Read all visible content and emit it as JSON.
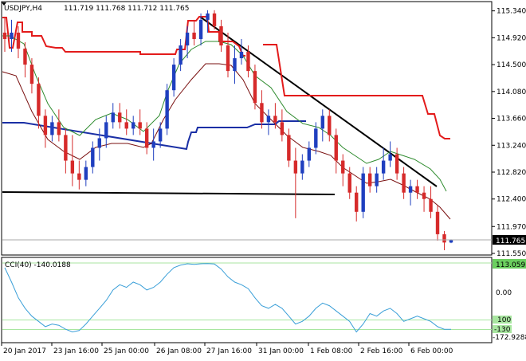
{
  "header": {
    "symbol": "USDJPY,H4",
    "ohlc": "111.719 111.768 111.712 111.765"
  },
  "price_axis": {
    "labels": [
      "115.340",
      "114.920",
      "114.500",
      "114.080",
      "113.660",
      "113.240",
      "112.820",
      "112.400",
      "111.970",
      "111.550"
    ],
    "current_price": "111.765"
  },
  "cci_panel": {
    "label": "CCI(40) -140.0188",
    "scale_labels": [
      "113.0593",
      "0.00",
      "-172.9288"
    ],
    "level_labels": [
      "100",
      "-130"
    ]
  },
  "time_axis": {
    "labels": [
      "20 Jan 2017",
      "23 Jan 16:00",
      "25 Jan 00:00",
      "26 Jan 08:00",
      "27 Jan 16:00",
      "31 Jan 00:00",
      "1 Feb 08:00",
      "2 Feb 16:00",
      "6 Feb 00:00"
    ]
  },
  "colors": {
    "bull": "#1f3fbf",
    "bear": "#d62a2a",
    "red_line": "#e31b1b",
    "blue_line": "#1a2fa5",
    "ma_green": "#2e8b2e",
    "ma_maroon": "#7a1010",
    "cci": "#3a9fd8",
    "cci_levels": "#a8e6a0"
  },
  "chart_data": [
    {
      "type": "candlestick",
      "title": "USDJPY,H4",
      "ylim": [
        111.55,
        115.46
      ],
      "x": [
        "20 Jan 2017",
        "23 Jan 16:00",
        "25 Jan 00:00",
        "26 Jan 08:00",
        "27 Jan 16:00",
        "31 Jan 00:00",
        "1 Feb 08:00",
        "2 Feb 16:00",
        "6 Feb 00:00"
      ],
      "candles": [
        [
          115.0,
          115.25,
          114.7,
          114.9
        ],
        [
          114.9,
          115.2,
          114.7,
          115.0
        ],
        [
          115.0,
          115.1,
          114.6,
          114.75
        ],
        [
          114.75,
          114.85,
          114.3,
          114.5
        ],
        [
          114.5,
          114.6,
          114.05,
          114.2
        ],
        [
          114.2,
          114.3,
          113.5,
          113.7
        ],
        [
          113.7,
          113.8,
          113.2,
          113.4
        ],
        [
          113.4,
          113.7,
          113.3,
          113.6
        ],
        [
          113.6,
          113.8,
          113.3,
          113.4
        ],
        [
          113.4,
          113.5,
          112.8,
          113.0
        ],
        [
          113.0,
          113.4,
          112.6,
          112.8
        ],
        [
          112.8,
          113.0,
          112.55,
          112.7
        ],
        [
          112.7,
          113.0,
          112.6,
          112.9
        ],
        [
          112.9,
          113.3,
          112.8,
          113.2
        ],
        [
          113.2,
          113.5,
          113.0,
          113.35
        ],
        [
          113.35,
          113.7,
          113.2,
          113.6
        ],
        [
          113.6,
          113.9,
          113.5,
          113.75
        ],
        [
          113.75,
          113.9,
          113.5,
          113.6
        ],
        [
          113.6,
          113.8,
          113.4,
          113.5
        ],
        [
          113.5,
          113.7,
          113.4,
          113.6
        ],
        [
          113.6,
          113.8,
          113.4,
          113.5
        ],
        [
          113.5,
          113.6,
          113.1,
          113.2
        ],
        [
          113.2,
          113.5,
          113.0,
          113.3
        ],
        [
          113.3,
          113.6,
          113.2,
          113.5
        ],
        [
          113.5,
          114.2,
          113.4,
          114.1
        ],
        [
          114.1,
          114.6,
          114.0,
          114.5
        ],
        [
          114.5,
          114.9,
          114.4,
          114.8
        ],
        [
          114.8,
          115.1,
          114.6,
          115.0
        ],
        [
          115.0,
          115.2,
          114.8,
          114.9
        ],
        [
          114.9,
          115.3,
          114.8,
          115.2
        ],
        [
          115.2,
          115.35,
          115.0,
          115.3
        ],
        [
          115.3,
          115.35,
          115.05,
          115.1
        ],
        [
          115.1,
          115.2,
          114.7,
          114.8
        ],
        [
          114.8,
          115.0,
          114.3,
          114.4
        ],
        [
          114.4,
          114.8,
          114.2,
          114.6
        ],
        [
          114.6,
          114.9,
          114.5,
          114.7
        ],
        [
          114.7,
          114.8,
          114.3,
          114.4
        ],
        [
          114.4,
          114.5,
          113.8,
          113.9
        ],
        [
          113.9,
          114.1,
          113.5,
          113.6
        ],
        [
          113.6,
          113.8,
          113.4,
          113.7
        ],
        [
          113.7,
          113.9,
          113.5,
          113.6
        ],
        [
          113.6,
          113.8,
          113.3,
          113.4
        ],
        [
          113.4,
          113.5,
          112.9,
          113.0
        ],
        [
          113.0,
          113.2,
          112.1,
          112.8
        ],
        [
          112.8,
          113.1,
          112.7,
          113.0
        ],
        [
          113.0,
          113.3,
          112.9,
          113.2
        ],
        [
          113.2,
          113.6,
          113.1,
          113.5
        ],
        [
          113.5,
          113.8,
          113.3,
          113.7
        ],
        [
          113.7,
          113.8,
          113.3,
          113.4
        ],
        [
          113.4,
          113.5,
          112.8,
          113.0
        ],
        [
          113.0,
          113.1,
          112.6,
          112.8
        ],
        [
          112.8,
          112.9,
          112.4,
          112.5
        ],
        [
          112.5,
          112.6,
          112.05,
          112.2
        ],
        [
          112.2,
          112.9,
          112.1,
          112.8
        ],
        [
          112.8,
          112.9,
          112.5,
          112.6
        ],
        [
          112.6,
          112.9,
          112.5,
          112.8
        ],
        [
          112.8,
          113.2,
          112.7,
          113.0
        ],
        [
          113.0,
          113.3,
          112.9,
          113.1
        ],
        [
          113.1,
          113.2,
          112.7,
          112.8
        ],
        [
          112.8,
          112.9,
          112.4,
          112.5
        ],
        [
          112.5,
          112.7,
          112.3,
          112.6
        ],
        [
          112.6,
          112.7,
          112.4,
          112.5
        ],
        [
          112.5,
          112.6,
          112.2,
          112.4
        ],
        [
          112.4,
          112.6,
          112.1,
          112.2
        ],
        [
          112.2,
          112.3,
          111.75,
          111.85
        ],
        [
          111.85,
          111.9,
          111.6,
          111.72
        ],
        [
          111.72,
          111.77,
          111.71,
          111.765
        ]
      ]
    },
    {
      "type": "line",
      "title": "CCI(40) -140.0188",
      "ylim": [
        -172.9288,
        113.0593
      ],
      "levels": [
        100,
        -130
      ],
      "series": [
        {
          "values": [
            95,
            40,
            -20,
            -60,
            -90,
            -110,
            -130,
            -120,
            -125,
            -140,
            -150,
            -145,
            -120,
            -90,
            -60,
            -30,
            10,
            30,
            20,
            40,
            30,
            10,
            20,
            40,
            70,
            95,
            105,
            110,
            108,
            110,
            111,
            109,
            90,
            60,
            40,
            30,
            15,
            -20,
            -50,
            -60,
            -45,
            -60,
            -90,
            -120,
            -110,
            -90,
            -60,
            -40,
            -50,
            -70,
            -90,
            -110,
            -150,
            -120,
            -80,
            -90,
            -70,
            -60,
            -80,
            -110,
            -100,
            -90,
            -100,
            -110,
            -130,
            -140,
            -140
          ]
        }
      ]
    }
  ]
}
